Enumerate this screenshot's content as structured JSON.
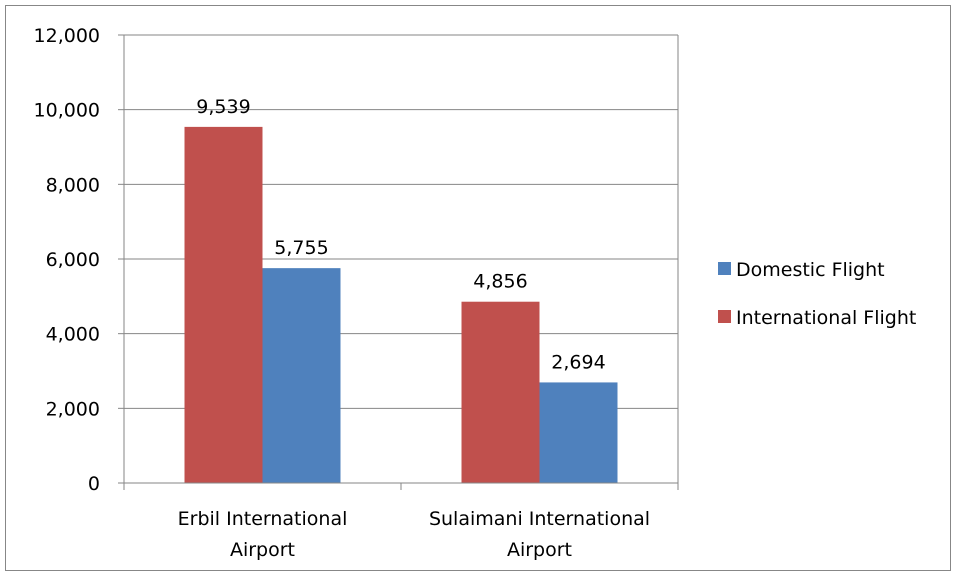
{
  "chart_data": {
    "type": "bar",
    "categories": [
      [
        "Erbil International",
        "Airport"
      ],
      [
        "Sulaimani International",
        "Airport"
      ]
    ],
    "series": [
      {
        "name": "International Flight",
        "color": "#c0504d",
        "values": [
          9539,
          4856
        ]
      },
      {
        "name": "Domestic Flight",
        "color": "#4f81bd",
        "values": [
          5755,
          2694
        ]
      }
    ],
    "data_labels": [
      [
        "9,539",
        "4,856"
      ],
      [
        "5,755",
        "2,694"
      ]
    ],
    "yticks": [
      "0",
      "2,000",
      "4,000",
      "6,000",
      "8,000",
      "10,000",
      "12,000"
    ],
    "ylim": [
      0,
      12000
    ],
    "ystep": 2000,
    "grid": true,
    "legend": {
      "position": "right",
      "entries": [
        {
          "label": "Domestic Flight",
          "color": "#4f81bd"
        },
        {
          "label": "International Flight",
          "color": "#c0504d"
        }
      ]
    },
    "colors": {
      "axis": "#868686",
      "gridline": "#868686",
      "frame": "#878787"
    }
  }
}
